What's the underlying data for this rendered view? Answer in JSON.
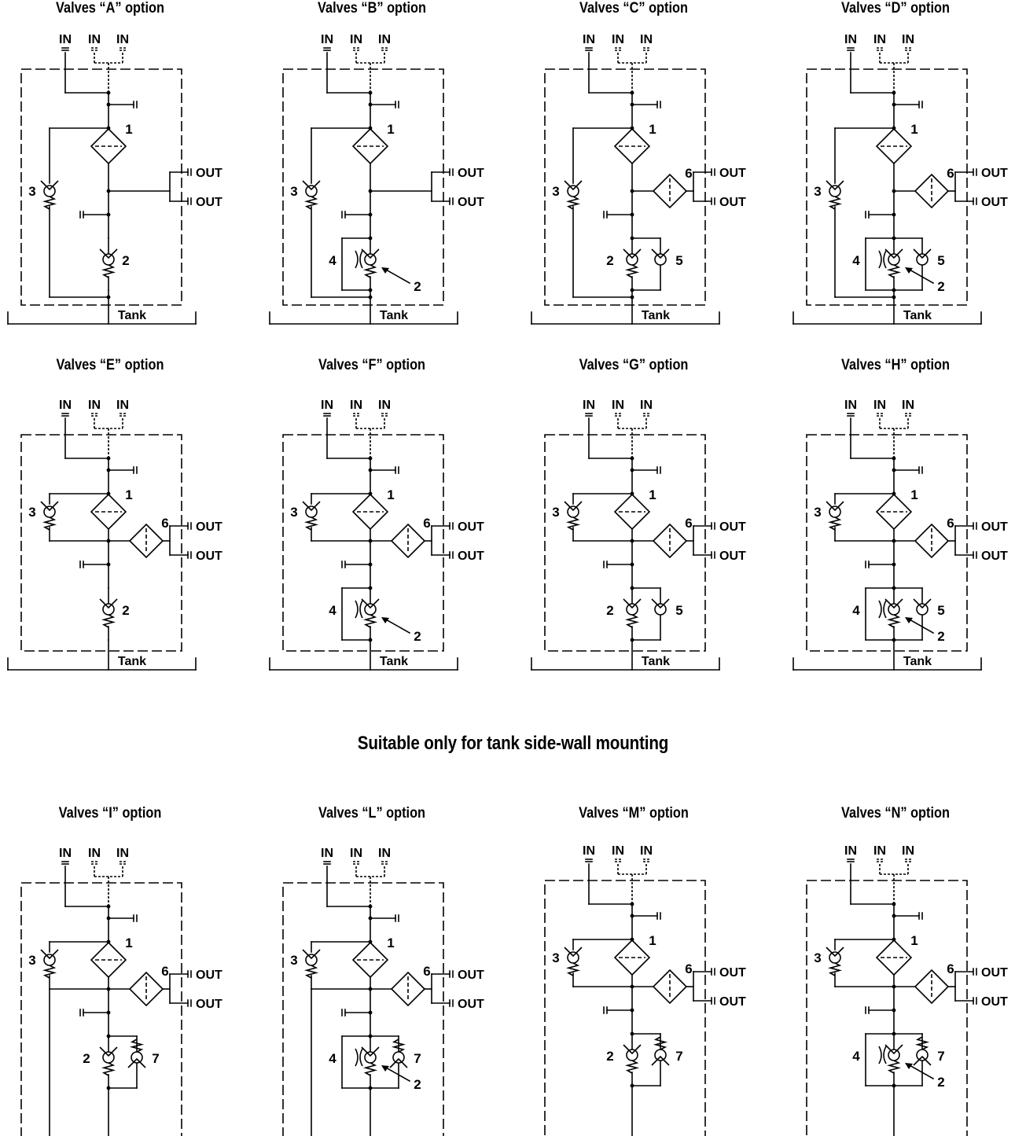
{
  "section_heading": "Suitable only for tank side-wall mounting",
  "labels": {
    "in": "IN",
    "out": "OUT",
    "tank": "Tank"
  },
  "diagrams": [
    {
      "title": "Valves “A” option",
      "components": [
        "1",
        "2",
        "3"
      ]
    },
    {
      "title": "Valves “B” option",
      "components": [
        "1",
        "2",
        "3",
        "4"
      ]
    },
    {
      "title": "Valves “C” option",
      "components": [
        "1",
        "2",
        "3",
        "5",
        "6"
      ]
    },
    {
      "title": "Valves “D” option",
      "components": [
        "1",
        "2",
        "3",
        "4",
        "5",
        "6"
      ]
    },
    {
      "title": "Valves “E” option",
      "components": [
        "1",
        "2",
        "3",
        "6"
      ]
    },
    {
      "title": "Valves “F” option",
      "components": [
        "1",
        "2",
        "3",
        "4",
        "6"
      ]
    },
    {
      "title": "Valves “G” option",
      "components": [
        "1",
        "2",
        "3",
        "5",
        "6"
      ]
    },
    {
      "title": "Valves “H” option",
      "components": [
        "1",
        "2",
        "3",
        "4",
        "5",
        "6"
      ]
    },
    {
      "title": "Valves “I” option",
      "components": [
        "1",
        "2",
        "3",
        "6",
        "7"
      ]
    },
    {
      "title": "Valves “L” option",
      "components": [
        "1",
        "2",
        "3",
        "4",
        "6",
        "7"
      ]
    },
    {
      "title": "Valves “M” option",
      "components": [
        "1",
        "2",
        "3",
        "6",
        "7"
      ]
    },
    {
      "title": "Valves “N” option",
      "components": [
        "1",
        "2",
        "3",
        "4",
        "6",
        "7"
      ]
    }
  ]
}
